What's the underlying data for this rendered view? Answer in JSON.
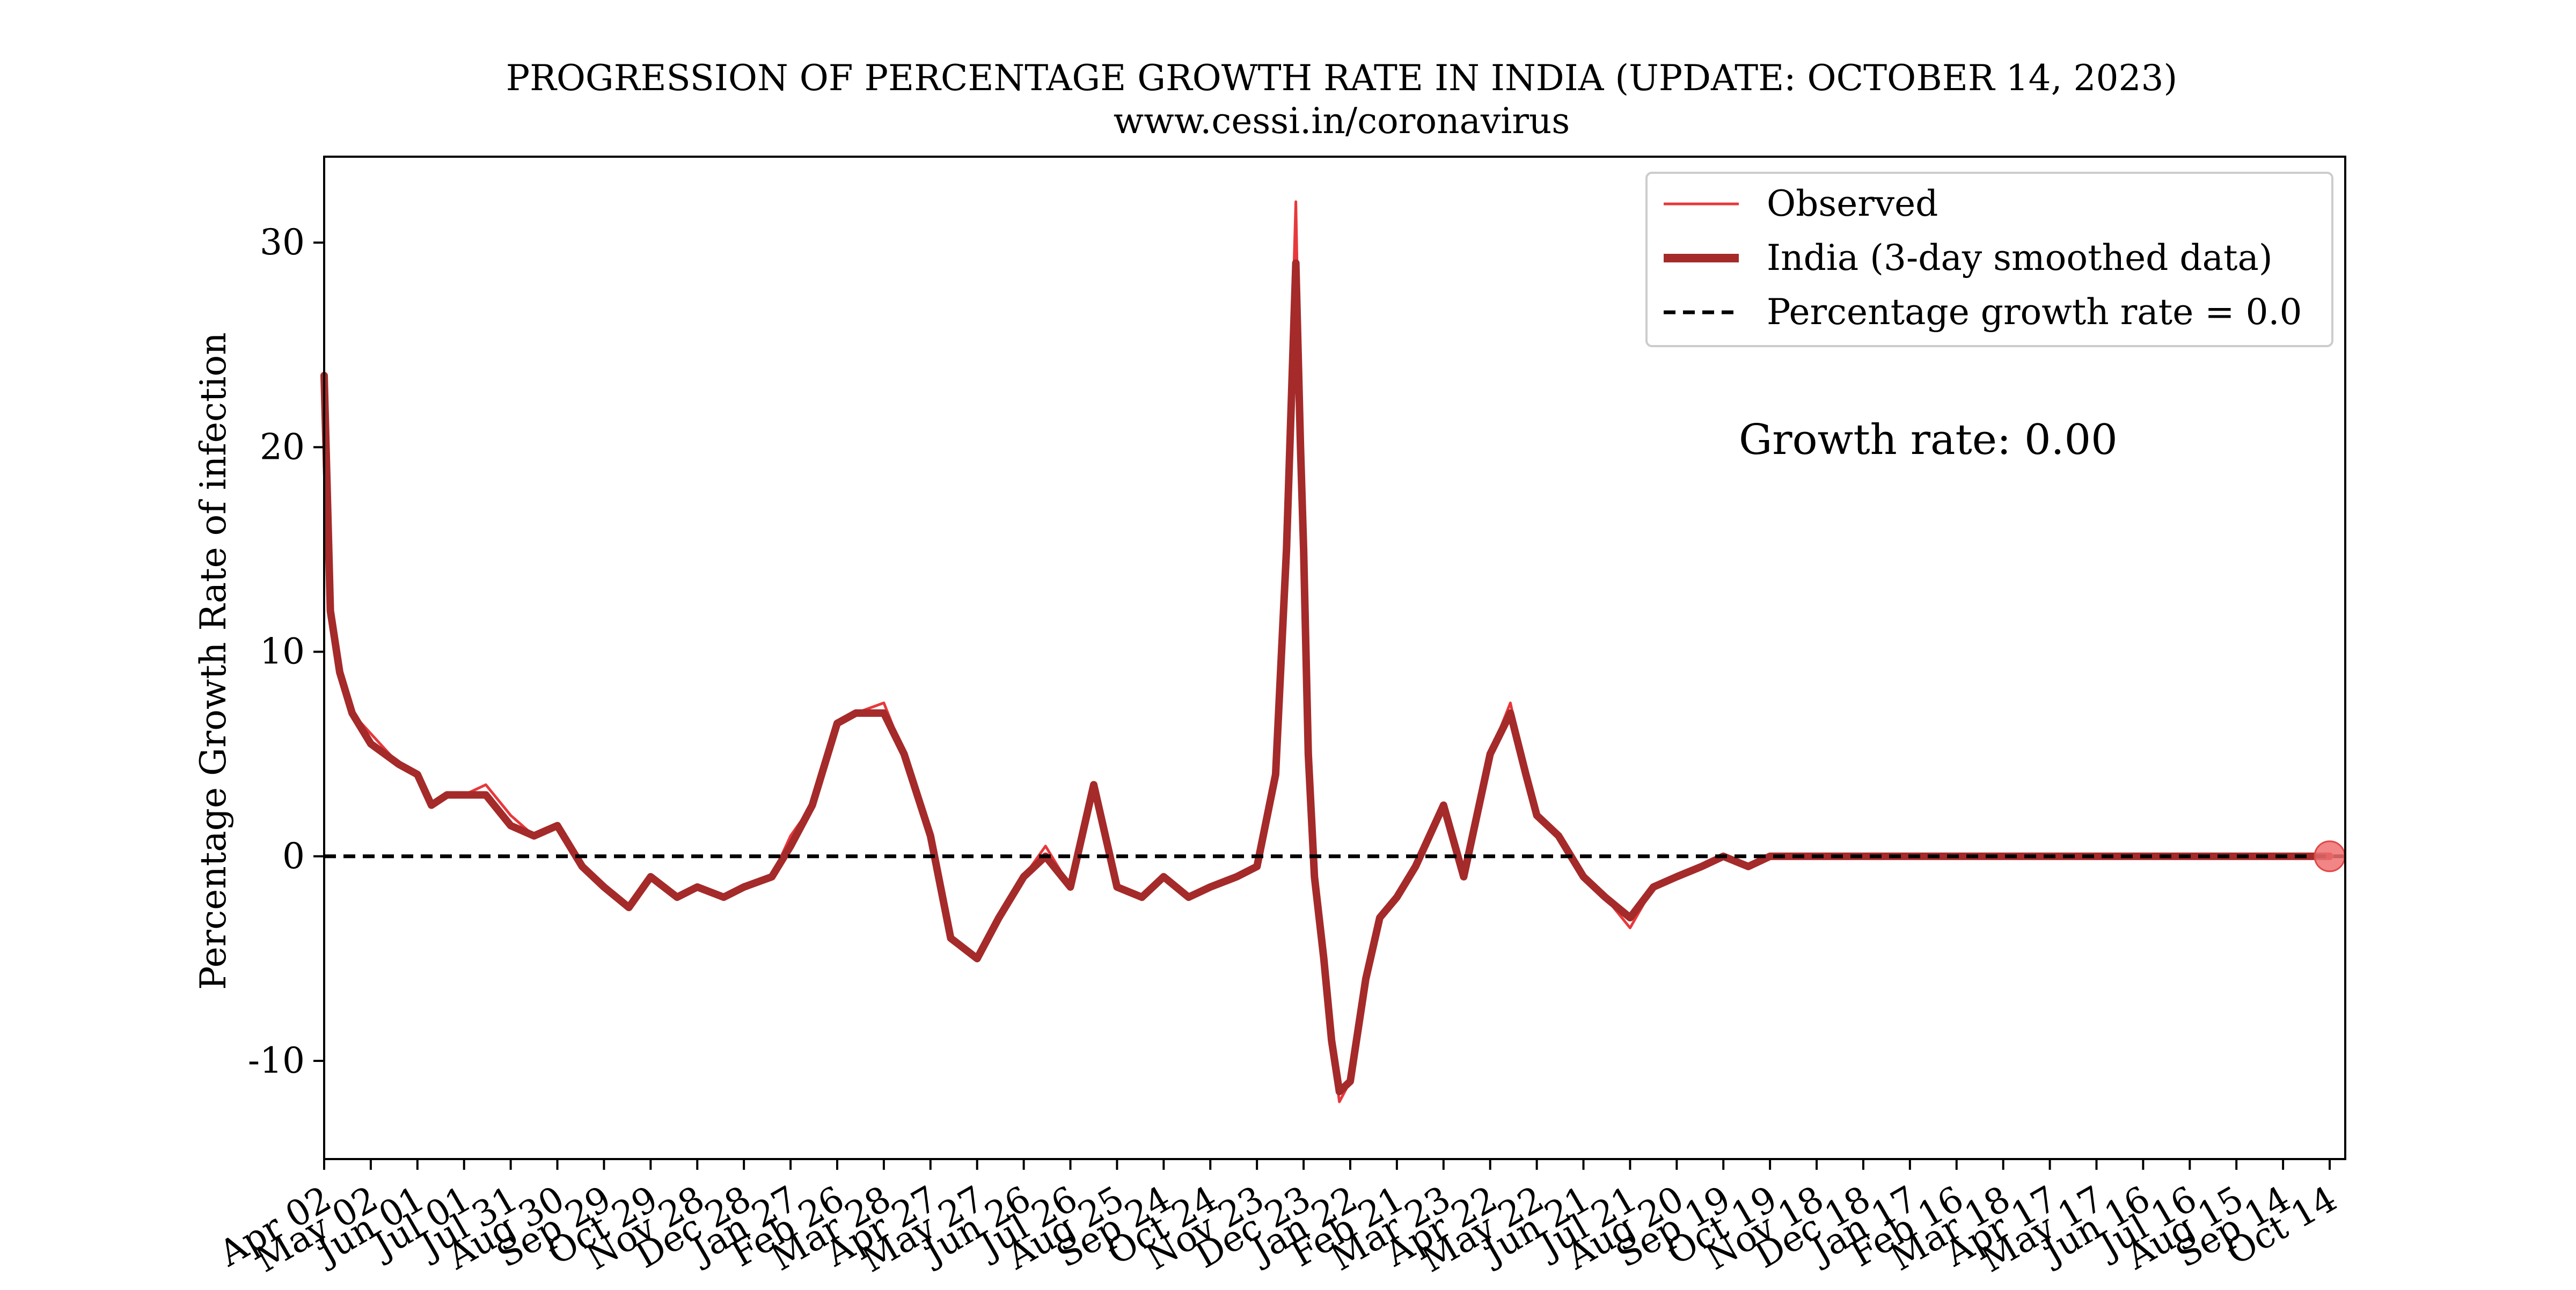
{
  "chart_data": {
    "type": "line",
    "title": "PROGRESSION OF PERCENTAGE GROWTH RATE IN INDIA (UPDATE: OCTOBER 14, 2023)",
    "subtitle": "www.cessi.in/coronavirus",
    "xlabel": "",
    "ylabel": "Percentage Growth Rate of infection",
    "ylim": [
      -14.8,
      34.2
    ],
    "xlim": [
      "2020-04-02",
      "2023-10-24"
    ],
    "yticks": [
      -10,
      0,
      10,
      20,
      30
    ],
    "ytick_labels": [
      "-10",
      "0",
      "10",
      "20",
      "30"
    ],
    "xtick_dates": [
      "2020-04-02",
      "2020-05-02",
      "2020-06-01",
      "2020-07-01",
      "2020-07-31",
      "2020-08-30",
      "2020-09-29",
      "2020-10-29",
      "2020-11-28",
      "2020-12-28",
      "2021-01-27",
      "2021-02-26",
      "2021-03-28",
      "2021-04-27",
      "2021-05-27",
      "2021-06-26",
      "2021-07-26",
      "2021-08-25",
      "2021-09-24",
      "2021-10-24",
      "2021-11-23",
      "2021-12-23",
      "2022-01-22",
      "2022-02-21",
      "2022-03-23",
      "2022-04-22",
      "2022-05-22",
      "2022-06-21",
      "2022-07-21",
      "2022-08-20",
      "2022-09-19",
      "2022-10-19",
      "2022-11-18",
      "2022-12-18",
      "2023-01-17",
      "2023-02-16",
      "2023-03-18",
      "2023-04-17",
      "2023-05-17",
      "2023-06-16",
      "2023-07-16",
      "2023-08-15",
      "2023-09-14",
      "2023-10-14"
    ],
    "xtick_labels": [
      "Apr 02",
      "May 02",
      "Jun 01",
      "Jul 01",
      "Jul 31",
      "Aug 30",
      "Sep 29",
      "Oct 29",
      "Nov 28",
      "Dec 28",
      "Jan 27",
      "Feb 26",
      "Mar 28",
      "Apr 27",
      "May 27",
      "Jun 26",
      "Jul 26",
      "Aug 25",
      "Sep 24",
      "Oct 24",
      "Nov 23",
      "Dec 23",
      "Jan 22",
      "Feb 21",
      "Mar 23",
      "Apr 22",
      "May 22",
      "Jun 21",
      "Jul 21",
      "Aug 20",
      "Sep 19",
      "Oct 19",
      "Nov 18",
      "Dec 18",
      "Jan 17",
      "Feb 16",
      "Mar 18",
      "Apr 17",
      "May 17",
      "Jun 16",
      "Jul 16",
      "Aug 15",
      "Sep 14",
      "Oct 14"
    ],
    "legend_position": "top-right",
    "grid": false,
    "series": [
      {
        "name": "Observed",
        "color": "#e8383b",
        "x": [
          "2020-04-02",
          "2020-04-06",
          "2020-04-12",
          "2020-04-20",
          "2020-05-02",
          "2020-05-20",
          "2020-06-01",
          "2020-06-10",
          "2020-06-20",
          "2020-07-01",
          "2020-07-15",
          "2020-07-31",
          "2020-08-15",
          "2020-08-30",
          "2020-09-15",
          "2020-09-29",
          "2020-10-15",
          "2020-10-29",
          "2020-11-15",
          "2020-11-28",
          "2020-12-15",
          "2020-12-28",
          "2021-01-15",
          "2021-01-27",
          "2021-02-10",
          "2021-02-26",
          "2021-03-10",
          "2021-03-28",
          "2021-04-10",
          "2021-04-27",
          "2021-05-10",
          "2021-05-27",
          "2021-06-10",
          "2021-06-26",
          "2021-07-10",
          "2021-07-26",
          "2021-08-10",
          "2021-08-25",
          "2021-09-10",
          "2021-09-24",
          "2021-10-10",
          "2021-10-24",
          "2021-11-10",
          "2021-11-23",
          "2021-12-05",
          "2021-12-12",
          "2021-12-18",
          "2021-12-21",
          "2021-12-23",
          "2021-12-26",
          "2021-12-30",
          "2022-01-05",
          "2022-01-10",
          "2022-01-15",
          "2022-01-22",
          "2022-02-01",
          "2022-02-10",
          "2022-02-21",
          "2022-03-05",
          "2022-03-23",
          "2022-04-05",
          "2022-04-22",
          "2022-05-05",
          "2022-05-15",
          "2022-05-22",
          "2022-06-05",
          "2022-06-21",
          "2022-07-05",
          "2022-07-21",
          "2022-08-05",
          "2022-08-20",
          "2022-09-05",
          "2022-09-19",
          "2022-10-05",
          "2022-10-19",
          "2022-11-18",
          "2022-12-18",
          "2023-01-17",
          "2023-02-16",
          "2023-03-18",
          "2023-04-17",
          "2023-05-17",
          "2023-06-16",
          "2023-07-16",
          "2023-08-15",
          "2023-09-14",
          "2023-10-14"
        ],
        "values": [
          23.5,
          13.0,
          9.0,
          7.0,
          6.0,
          4.5,
          4.0,
          2.5,
          3.0,
          3.0,
          3.5,
          2.0,
          1.0,
          1.5,
          -0.5,
          -1.5,
          -2.5,
          -1.0,
          -2.0,
          -1.5,
          -2.0,
          -1.5,
          -1.0,
          1.0,
          2.5,
          6.5,
          7.0,
          7.5,
          5.0,
          1.0,
          -4.0,
          -5.0,
          -3.0,
          -1.0,
          0.5,
          -1.5,
          3.5,
          -1.5,
          -2.0,
          -1.0,
          -2.0,
          -1.5,
          -1.0,
          -0.5,
          4.0,
          16.0,
          32.0,
          20.0,
          15.0,
          5.0,
          -1.0,
          -5.0,
          -9.0,
          -12.0,
          -11.0,
          -6.0,
          -3.0,
          -2.0,
          -0.5,
          2.5,
          -1.0,
          5.0,
          7.5,
          4.0,
          2.0,
          1.0,
          -1.0,
          -2.0,
          -3.5,
          -1.5,
          -1.0,
          -0.5,
          0.0,
          -0.5,
          0.0,
          0.0,
          0.0,
          0.0,
          0.0,
          0.0,
          0.0,
          0.0,
          0.0,
          0.0,
          0.0,
          0.0,
          0.0
        ]
      },
      {
        "name": "India (3-day smoothed data)",
        "color": "#a52a2a",
        "x": [
          "2020-04-02",
          "2020-04-06",
          "2020-04-12",
          "2020-04-20",
          "2020-05-02",
          "2020-05-20",
          "2020-06-01",
          "2020-06-10",
          "2020-06-20",
          "2020-07-01",
          "2020-07-15",
          "2020-07-31",
          "2020-08-15",
          "2020-08-30",
          "2020-09-15",
          "2020-09-29",
          "2020-10-15",
          "2020-10-29",
          "2020-11-15",
          "2020-11-28",
          "2020-12-15",
          "2020-12-28",
          "2021-01-15",
          "2021-01-27",
          "2021-02-10",
          "2021-02-26",
          "2021-03-10",
          "2021-03-28",
          "2021-04-10",
          "2021-04-27",
          "2021-05-10",
          "2021-05-27",
          "2021-06-10",
          "2021-06-26",
          "2021-07-10",
          "2021-07-26",
          "2021-08-10",
          "2021-08-25",
          "2021-09-10",
          "2021-09-24",
          "2021-10-10",
          "2021-10-24",
          "2021-11-10",
          "2021-11-23",
          "2021-12-05",
          "2021-12-12",
          "2021-12-18",
          "2021-12-21",
          "2021-12-23",
          "2021-12-26",
          "2021-12-30",
          "2022-01-05",
          "2022-01-10",
          "2022-01-15",
          "2022-01-22",
          "2022-02-01",
          "2022-02-10",
          "2022-02-21",
          "2022-03-05",
          "2022-03-23",
          "2022-04-05",
          "2022-04-22",
          "2022-05-05",
          "2022-05-15",
          "2022-05-22",
          "2022-06-05",
          "2022-06-21",
          "2022-07-05",
          "2022-07-21",
          "2022-08-05",
          "2022-08-20",
          "2022-09-05",
          "2022-09-19",
          "2022-10-05",
          "2022-10-19",
          "2022-11-18",
          "2022-12-18",
          "2023-01-17",
          "2023-02-16",
          "2023-03-18",
          "2023-04-17",
          "2023-05-17",
          "2023-06-16",
          "2023-07-16",
          "2023-08-15",
          "2023-09-14",
          "2023-10-14"
        ],
        "values": [
          23.5,
          12.0,
          9.0,
          7.0,
          5.5,
          4.5,
          4.0,
          2.5,
          3.0,
          3.0,
          3.0,
          1.5,
          1.0,
          1.5,
          -0.5,
          -1.5,
          -2.5,
          -1.0,
          -2.0,
          -1.5,
          -2.0,
          -1.5,
          -1.0,
          0.5,
          2.5,
          6.5,
          7.0,
          7.0,
          5.0,
          1.0,
          -4.0,
          -5.0,
          -3.0,
          -1.0,
          0.0,
          -1.5,
          3.5,
          -1.5,
          -2.0,
          -1.0,
          -2.0,
          -1.5,
          -1.0,
          -0.5,
          4.0,
          15.0,
          29.0,
          20.0,
          15.0,
          5.0,
          -1.0,
          -5.0,
          -9.0,
          -11.5,
          -11.0,
          -6.0,
          -3.0,
          -2.0,
          -0.5,
          2.5,
          -1.0,
          5.0,
          7.0,
          4.0,
          2.0,
          1.0,
          -1.0,
          -2.0,
          -3.0,
          -1.5,
          -1.0,
          -0.5,
          0.0,
          -0.5,
          0.0,
          0.0,
          0.0,
          0.0,
          0.0,
          0.0,
          0.0,
          0.0,
          0.0,
          0.0,
          0.0,
          0.0,
          0.0
        ]
      },
      {
        "name": "Percentage growth rate = 0.0",
        "color": "#000000",
        "style": "dashed",
        "value": 0.0
      }
    ],
    "marker": {
      "x": "2023-10-14",
      "y": 0.0,
      "color": "#f07070"
    },
    "annotation": {
      "text": "Growth rate: 0.00",
      "color": "#0000ff"
    }
  }
}
